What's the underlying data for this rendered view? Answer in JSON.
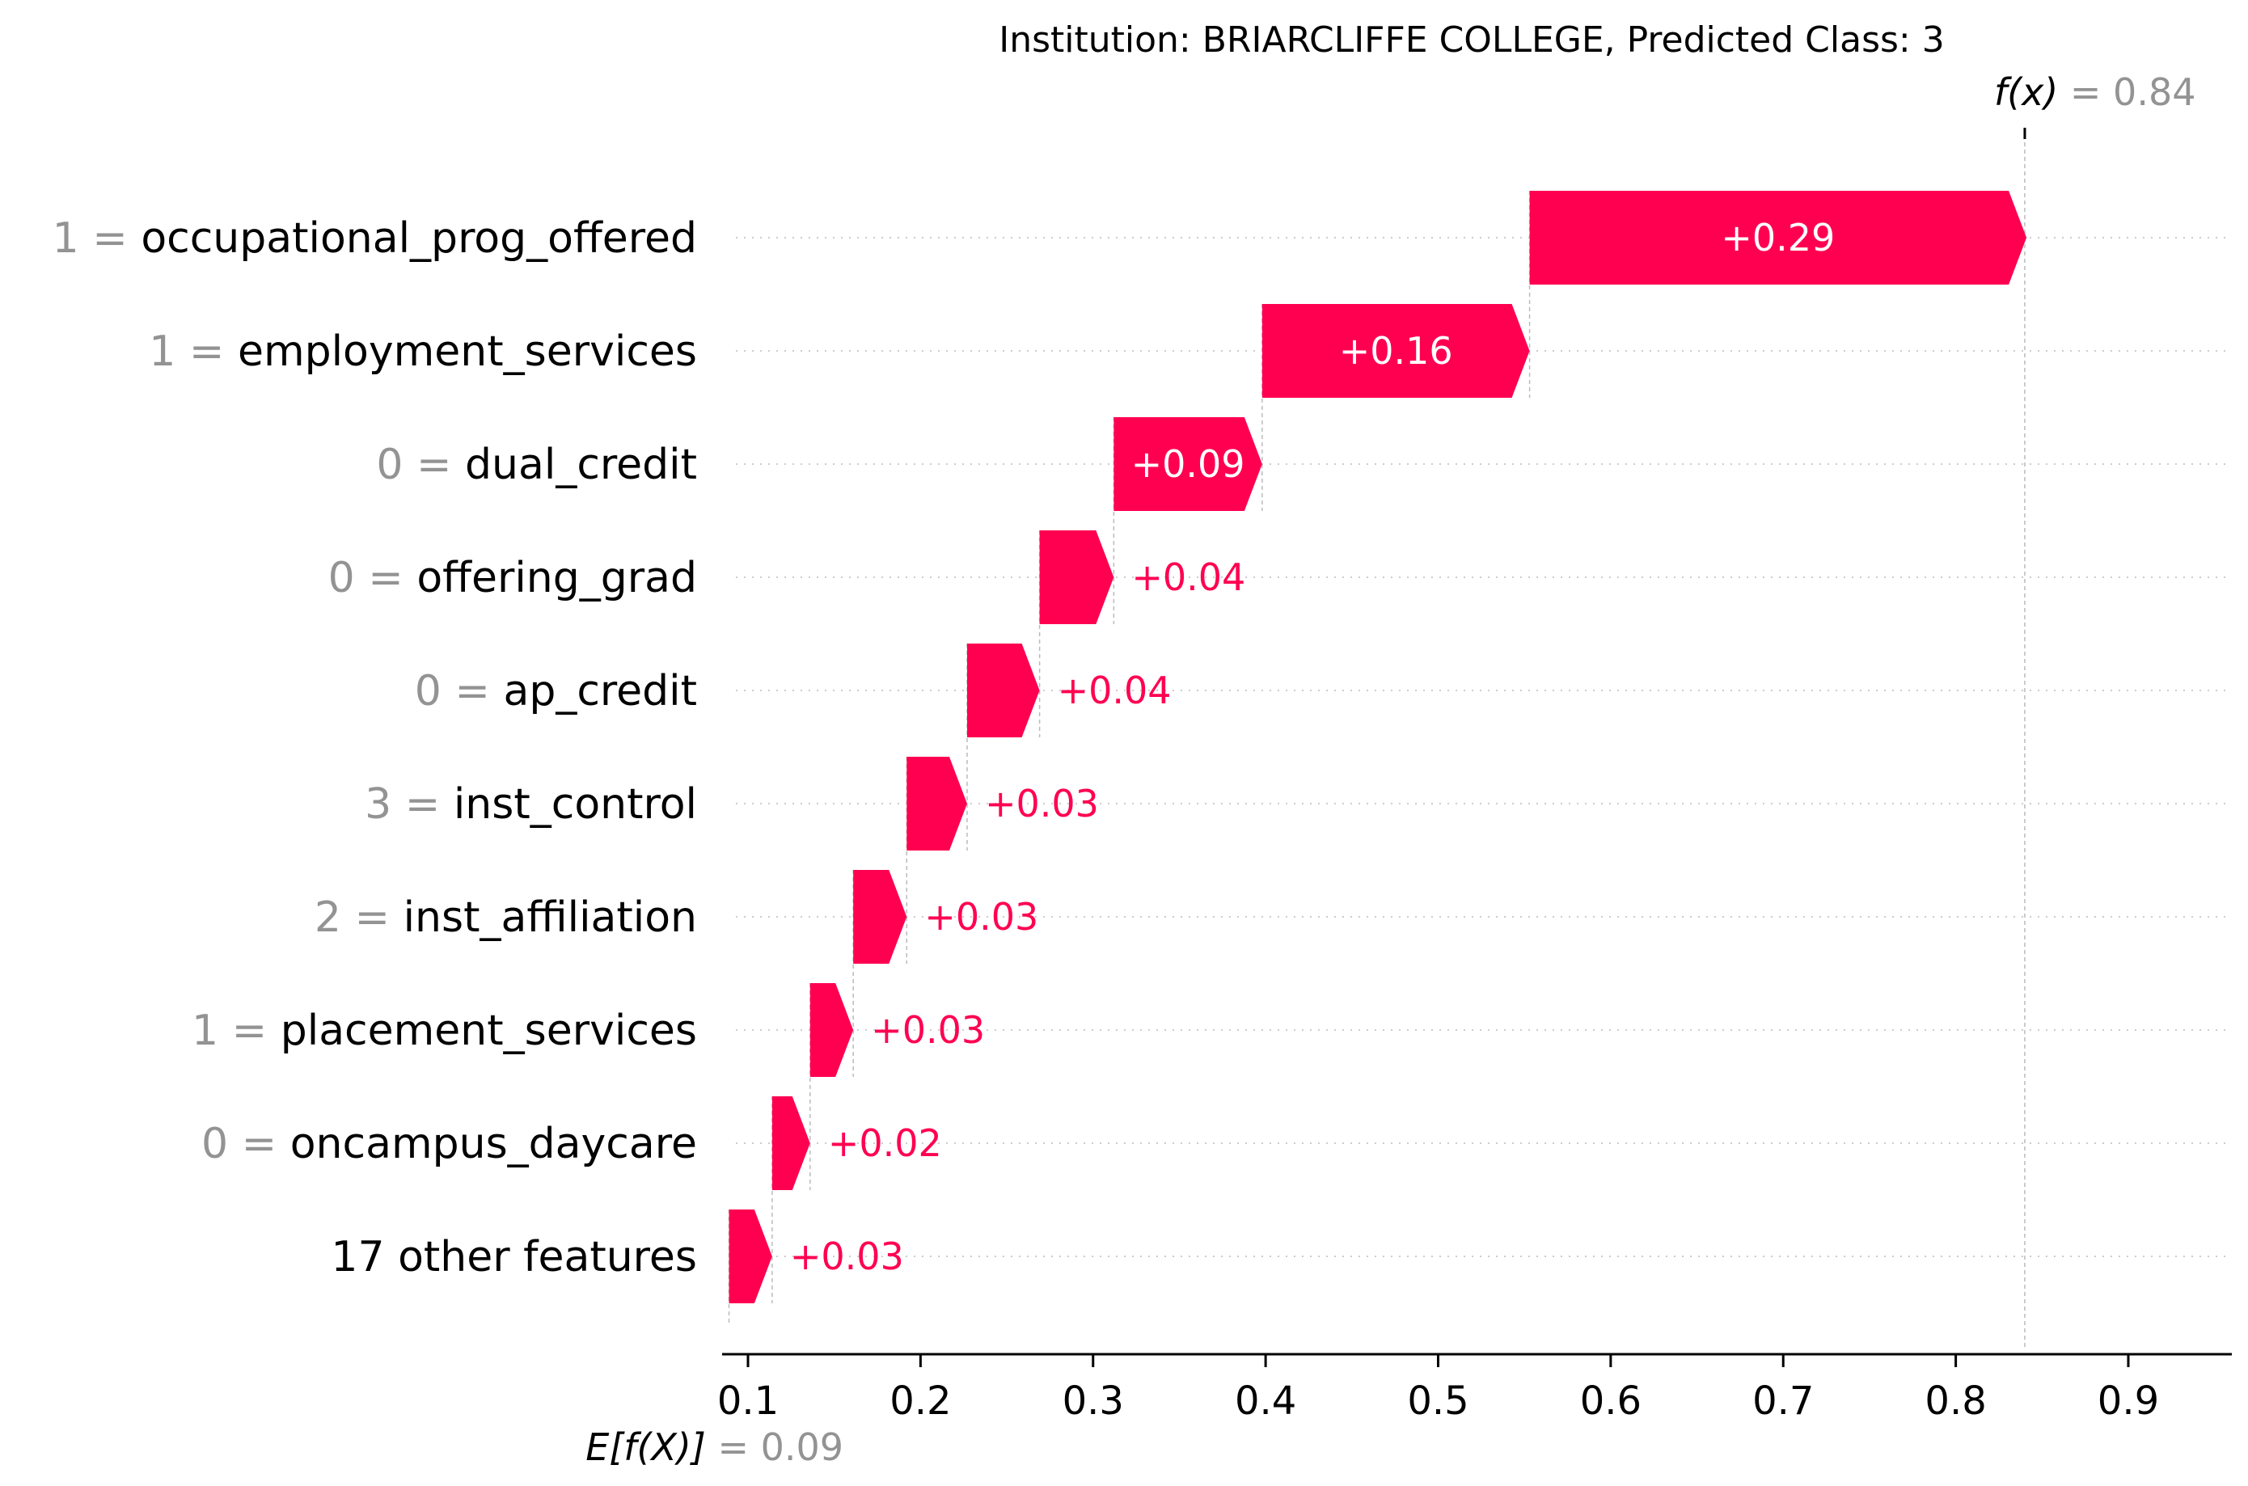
{
  "chart_data": {
    "type": "waterfall",
    "title": "Institution: BRIARCLIFFE COLLEGE, Predicted Class: 3",
    "base_value": 0.09,
    "base_label_prefix": "E[f(X)]",
    "output_value": 0.84,
    "output_label_prefix": "f(x)",
    "xlim": [
      0.085,
      0.96
    ],
    "xticks": [
      0.1,
      0.2,
      0.3,
      0.4,
      0.5,
      0.6,
      0.7,
      0.8,
      0.9
    ],
    "positive_color": "#ff0051",
    "negative_color": "#008bfb",
    "features": [
      {
        "value": "1",
        "name": "occupational_prog_offered",
        "start": 0.553,
        "contribution": 0.288,
        "label": "+0.29"
      },
      {
        "value": "1",
        "name": "employment_services",
        "start": 0.398,
        "contribution": 0.155,
        "label": "+0.16"
      },
      {
        "value": "0",
        "name": "dual_credit",
        "start": 0.312,
        "contribution": 0.086,
        "label": "+0.09"
      },
      {
        "value": "0",
        "name": "offering_grad",
        "start": 0.269,
        "contribution": 0.043,
        "label": "+0.04"
      },
      {
        "value": "0",
        "name": "ap_credit",
        "start": 0.227,
        "contribution": 0.042,
        "label": "+0.04"
      },
      {
        "value": "3",
        "name": "inst_control",
        "start": 0.192,
        "contribution": 0.035,
        "label": "+0.03"
      },
      {
        "value": "2",
        "name": "inst_affiliation",
        "start": 0.161,
        "contribution": 0.031,
        "label": "+0.03"
      },
      {
        "value": "1",
        "name": "placement_services",
        "start": 0.136,
        "contribution": 0.025,
        "label": "+0.03"
      },
      {
        "value": "0",
        "name": "oncampus_daycare",
        "start": 0.114,
        "contribution": 0.022,
        "label": "+0.02"
      },
      {
        "value": "",
        "name": "17 other features",
        "start": 0.089,
        "contribution": 0.025,
        "label": "+0.03"
      }
    ]
  }
}
